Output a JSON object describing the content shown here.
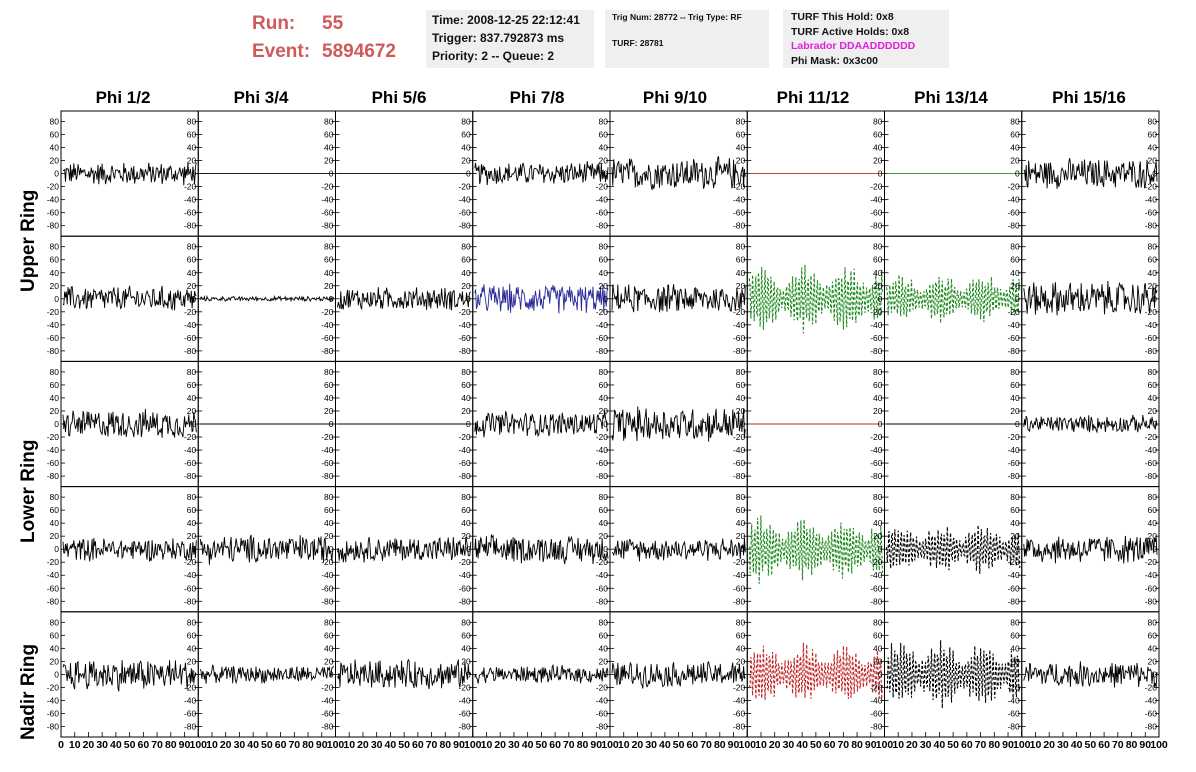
{
  "header": {
    "run_label": "Run:",
    "run_value": "55",
    "event_label": "Event:",
    "event_value": "5894672",
    "time": "Time: 2008-12-25 22:12:41",
    "trigger": "Trigger: 837.792873 ms",
    "priority": "Priority: 2 -- Queue: 2",
    "trig_num": "Trig Num: 28772 -- Trig Type: RF",
    "turf": "TURF: 28781",
    "turf_hold": "TURF This Hold: 0x8",
    "turf_active": "TURF Active Holds: 0x8",
    "labrador": "Labrador DDAADDDDDD",
    "phi_mask": "Phi Mask: 0x3c00"
  },
  "columns": [
    "Phi 1/2",
    "Phi 3/4",
    "Phi 5/6",
    "Phi 7/8",
    "Phi 9/10",
    "Phi 11/12",
    "Phi 13/14",
    "Phi 15/16"
  ],
  "ring_labels": [
    "Upper Ring",
    "Lower Ring",
    "Nadir Ring"
  ],
  "colors": {
    "run_text": "#d05a5a",
    "labrador": "#e01fe0",
    "black": "#000000",
    "blue": "#2a2a9a",
    "green": "#228b22",
    "red": "#c0282a"
  },
  "chart_data": {
    "type": "line",
    "title": "",
    "xlabel": "",
    "ylabel": "",
    "ylim": [
      -90,
      90
    ],
    "xlim": [
      0,
      100
    ],
    "y_ticks": [
      -80,
      -60,
      -40,
      -20,
      0,
      20,
      40,
      60,
      80
    ],
    "x_ticks": [
      0,
      10,
      20,
      30,
      40,
      50,
      60,
      70,
      80,
      90,
      100
    ],
    "grid": false,
    "rows": [
      {
        "ring": "Upper Ring",
        "channel": "a",
        "cells": [
          {
            "amp": 20,
            "color": "black",
            "style": "solid"
          },
          {
            "amp": 0,
            "color": "black",
            "style": "solid"
          },
          {
            "amp": 0,
            "color": "black",
            "style": "solid"
          },
          {
            "amp": 20,
            "color": "black",
            "style": "solid"
          },
          {
            "amp": 28,
            "color": "black",
            "style": "solid"
          },
          {
            "amp": 0,
            "color": "red",
            "style": "solid"
          },
          {
            "amp": 0,
            "color": "green",
            "style": "solid"
          },
          {
            "amp": 26,
            "color": "black",
            "style": "solid"
          }
        ]
      },
      {
        "ring": "Upper Ring",
        "channel": "b",
        "cells": [
          {
            "amp": 22,
            "color": "black",
            "style": "solid"
          },
          {
            "amp": 4,
            "color": "black",
            "style": "solid"
          },
          {
            "amp": 20,
            "color": "black",
            "style": "solid"
          },
          {
            "amp": 25,
            "color": "blue",
            "style": "solid"
          },
          {
            "amp": 25,
            "color": "black",
            "style": "solid"
          },
          {
            "amp": 55,
            "color": "green",
            "style": "dashed"
          },
          {
            "amp": 40,
            "color": "green",
            "style": "dashed"
          },
          {
            "amp": 30,
            "color": "black",
            "style": "solid"
          }
        ]
      },
      {
        "ring": "Lower Ring",
        "channel": "a",
        "cells": [
          {
            "amp": 25,
            "color": "black",
            "style": "solid"
          },
          {
            "amp": 0,
            "color": "black",
            "style": "solid"
          },
          {
            "amp": 0,
            "color": "black",
            "style": "solid"
          },
          {
            "amp": 22,
            "color": "black",
            "style": "solid"
          },
          {
            "amp": 30,
            "color": "black",
            "style": "solid"
          },
          {
            "amp": 0,
            "color": "red",
            "style": "solid"
          },
          {
            "amp": 0,
            "color": "black",
            "style": "solid"
          },
          {
            "amp": 15,
            "color": "black",
            "style": "solid"
          }
        ]
      },
      {
        "ring": "Lower Ring",
        "channel": "b",
        "cells": [
          {
            "amp": 20,
            "color": "black",
            "style": "solid"
          },
          {
            "amp": 25,
            "color": "black",
            "style": "solid"
          },
          {
            "amp": 22,
            "color": "black",
            "style": "solid"
          },
          {
            "amp": 24,
            "color": "black",
            "style": "solid"
          },
          {
            "amp": 20,
            "color": "black",
            "style": "solid"
          },
          {
            "amp": 55,
            "color": "green",
            "style": "dashed"
          },
          {
            "amp": 40,
            "color": "black",
            "style": "dashed"
          },
          {
            "amp": 25,
            "color": "black",
            "style": "solid"
          }
        ]
      },
      {
        "ring": "Nadir Ring",
        "channel": "a",
        "cells": [
          {
            "amp": 28,
            "color": "black",
            "style": "solid"
          },
          {
            "amp": 15,
            "color": "black",
            "style": "solid"
          },
          {
            "amp": 25,
            "color": "black",
            "style": "solid"
          },
          {
            "amp": 15,
            "color": "black",
            "style": "solid"
          },
          {
            "amp": 22,
            "color": "black",
            "style": "solid"
          },
          {
            "amp": 50,
            "color": "red",
            "style": "dashed"
          },
          {
            "amp": 55,
            "color": "black",
            "style": "dashed"
          },
          {
            "amp": 22,
            "color": "black",
            "style": "solid"
          }
        ]
      }
    ]
  }
}
